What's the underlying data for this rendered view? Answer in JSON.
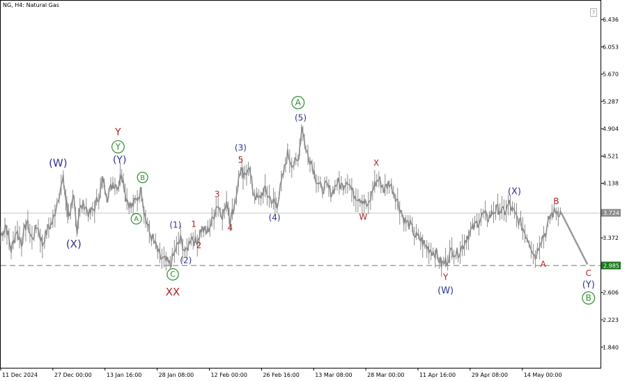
{
  "header": {
    "title": "NG, H4:  Natural Gas",
    "help_icon_symbol": "?"
  },
  "colors": {
    "price": "#8a8a8a",
    "navy": "#2e3192",
    "red": "#b22222",
    "green": "#2e8b2e",
    "marker_current": "#8c8c8c",
    "marker_level": "#1e7a1e"
  },
  "chart_data": {
    "type": "line",
    "title": "NG, H4:  Natural Gas",
    "instrument": "NG",
    "timeframe": "H4",
    "name": "Natural Gas",
    "xlabel": "",
    "ylabel": "",
    "grid": false,
    "ylim": [
      1.55,
      6.7
    ],
    "y_ticks": [
      6.436,
      6.053,
      5.67,
      5.287,
      4.904,
      4.521,
      4.138,
      3.755,
      3.372,
      2.989,
      2.606,
      2.223,
      1.84
    ],
    "y_tick_labels": [
      "6.436",
      "6.053",
      "5.670",
      "5.287",
      "4.904",
      "4.521",
      "4.138",
      "",
      "3.372",
      "",
      "2.606",
      "2.223",
      "1.840"
    ],
    "x_ticks": [
      {
        "label": "11 Dec 2024",
        "x": 0
      },
      {
        "label": "27 Dec 00:00",
        "x": 10
      },
      {
        "label": "13 Jan 16:00",
        "x": 20
      },
      {
        "label": "28 Jan 08:00",
        "x": 30
      },
      {
        "label": "12 Feb 00:00",
        "x": 40
      },
      {
        "label": "26 Feb 16:00",
        "x": 50
      },
      {
        "label": "13 Mar 08:00",
        "x": 60
      },
      {
        "label": "28 Mar 00:00",
        "x": 70
      },
      {
        "label": "11 Apr 16:00",
        "x": 80
      },
      {
        "label": "29 Apr 08:00",
        "x": 90
      },
      {
        "label": "14 May 00:00",
        "x": 100
      }
    ],
    "xlim": [
      0,
      115
    ],
    "price_path": [
      [
        0,
        3.4
      ],
      [
        1,
        3.55
      ],
      [
        2,
        3.2
      ],
      [
        3,
        3.48
      ],
      [
        4,
        3.3
      ],
      [
        5,
        3.6
      ],
      [
        6,
        3.35
      ],
      [
        7,
        3.55
      ],
      [
        8,
        3.28
      ],
      [
        9,
        3.5
      ],
      [
        10,
        3.6
      ],
      [
        11,
        3.95
      ],
      [
        12,
        4.18
      ],
      [
        12.6,
        3.85
      ],
      [
        13,
        3.7
      ],
      [
        14,
        3.9
      ],
      [
        14.6,
        3.45
      ],
      [
        15,
        3.75
      ],
      [
        16,
        3.85
      ],
      [
        17,
        3.7
      ],
      [
        18,
        3.8
      ],
      [
        19,
        4.0
      ],
      [
        19.6,
        4.2
      ],
      [
        20.5,
        3.95
      ],
      [
        21.5,
        4.15
      ],
      [
        22.5,
        4.1
      ],
      [
        23.2,
        4.3
      ],
      [
        24,
        3.95
      ],
      [
        25,
        3.8
      ],
      [
        26,
        3.9
      ],
      [
        27,
        4.05
      ],
      [
        27.6,
        3.7
      ],
      [
        28.5,
        3.45
      ],
      [
        29.5,
        3.3
      ],
      [
        30.5,
        3.1
      ],
      [
        31.5,
        3.05
      ],
      [
        32.5,
        2.99
      ],
      [
        33.5,
        3.2
      ],
      [
        34.5,
        3.35
      ],
      [
        35.5,
        3.15
      ],
      [
        36.5,
        3.4
      ],
      [
        37.5,
        3.3
      ],
      [
        38.5,
        3.5
      ],
      [
        39.5,
        3.45
      ],
      [
        40.5,
        3.6
      ],
      [
        41.5,
        3.85
      ],
      [
        42.5,
        3.7
      ],
      [
        43.5,
        3.85
      ],
      [
        44,
        3.6
      ],
      [
        45,
        3.9
      ],
      [
        46,
        4.35
      ],
      [
        46.6,
        4.2
      ],
      [
        47.5,
        4.4
      ],
      [
        48.5,
        4.0
      ],
      [
        49.5,
        3.9
      ],
      [
        50.5,
        4.05
      ],
      [
        51.5,
        3.95
      ],
      [
        52.5,
        3.85
      ],
      [
        53,
        3.85
      ],
      [
        54,
        4.2
      ],
      [
        55,
        4.55
      ],
      [
        56,
        4.4
      ],
      [
        57,
        4.45
      ],
      [
        57.8,
        4.95
      ],
      [
        58.5,
        4.6
      ],
      [
        59.5,
        4.45
      ],
      [
        60.5,
        4.2
      ],
      [
        61.5,
        4.05
      ],
      [
        62.5,
        4.1
      ],
      [
        63.5,
        4.0
      ],
      [
        64.5,
        4.15
      ],
      [
        65.5,
        4.1
      ],
      [
        66.5,
        4.2
      ],
      [
        67.5,
        4.0
      ],
      [
        68.5,
        3.95
      ],
      [
        69.5,
        3.9
      ],
      [
        70.5,
        3.8
      ],
      [
        71.5,
        4.1
      ],
      [
        72.5,
        4.2
      ],
      [
        73.5,
        4.05
      ],
      [
        74.5,
        4.15
      ],
      [
        75.5,
        4.0
      ],
      [
        76.5,
        3.8
      ],
      [
        77.5,
        3.6
      ],
      [
        78.5,
        3.55
      ],
      [
        79.5,
        3.4
      ],
      [
        80.5,
        3.35
      ],
      [
        81.5,
        3.25
      ],
      [
        82.5,
        3.2
      ],
      [
        83.5,
        3.15
      ],
      [
        84.5,
        3.0
      ],
      [
        85.5,
        3.05
      ],
      [
        86.5,
        3.2
      ],
      [
        87.5,
        3.15
      ],
      [
        88.5,
        3.25
      ],
      [
        89.5,
        3.4
      ],
      [
        90.5,
        3.5
      ],
      [
        91.5,
        3.6
      ],
      [
        92.5,
        3.7
      ],
      [
        93.5,
        3.65
      ],
      [
        94.5,
        3.75
      ],
      [
        95.5,
        3.78
      ],
      [
        96.5,
        3.72
      ],
      [
        97.5,
        3.85
      ],
      [
        98.5,
        3.7
      ],
      [
        99.5,
        3.6
      ],
      [
        100.5,
        3.45
      ],
      [
        101.5,
        3.3
      ],
      [
        102.5,
        3.1
      ],
      [
        103.5,
        3.35
      ],
      [
        104.5,
        3.45
      ],
      [
        105.5,
        3.7
      ],
      [
        106.5,
        3.75
      ],
      [
        107.5,
        3.72
      ]
    ],
    "projection": {
      "from": [
        107.5,
        3.72
      ],
      "to": [
        112.5,
        3.0
      ]
    },
    "reference_lines": [
      {
        "name": "current-price-line",
        "y": 3.72,
        "style": "solid"
      },
      {
        "name": "level-line",
        "y": 2.985,
        "style": "dashed"
      }
    ],
    "price_markers": [
      {
        "name": "current-price-marker",
        "label": "3.724",
        "y": 3.724
      },
      {
        "name": "level-marker",
        "label": "2.985",
        "y": 2.985
      }
    ],
    "wave_labels": [
      {
        "text": "(W)",
        "x": 11,
        "y": 4.42,
        "color": "navy",
        "size": 15
      },
      {
        "text": "(X)",
        "x": 14,
        "y": 3.28,
        "color": "navy",
        "size": 15
      },
      {
        "text": "Y",
        "x": 22.5,
        "y": 4.85,
        "color": "red",
        "size": 14
      },
      {
        "text": "Y",
        "x": 22.5,
        "y": 4.65,
        "color": "green",
        "size": 13,
        "circled": true
      },
      {
        "text": "(Y)",
        "x": 22.8,
        "y": 4.46,
        "color": "navy",
        "size": 14
      },
      {
        "text": "B",
        "x": 27.2,
        "y": 4.22,
        "color": "green",
        "size": 11,
        "circled": true
      },
      {
        "text": "A",
        "x": 26,
        "y": 3.64,
        "color": "green",
        "size": 11,
        "circled": true
      },
      {
        "text": "(1)",
        "x": 33.5,
        "y": 3.55,
        "color": "navy",
        "size": 12
      },
      {
        "text": "1",
        "x": 37,
        "y": 3.56,
        "color": "red",
        "size": 12
      },
      {
        "text": "2",
        "x": 38,
        "y": 3.26,
        "color": "red",
        "size": 12
      },
      {
        "text": "(2)",
        "x": 35.5,
        "y": 3.05,
        "color": "navy",
        "size": 12
      },
      {
        "text": "C",
        "x": 33,
        "y": 2.86,
        "color": "green",
        "size": 12,
        "circled": true
      },
      {
        "text": "XX",
        "x": 33,
        "y": 2.61,
        "color": "red",
        "size": 15
      },
      {
        "text": "3",
        "x": 41.5,
        "y": 3.98,
        "color": "red",
        "size": 12
      },
      {
        "text": "4",
        "x": 44,
        "y": 3.51,
        "color": "red",
        "size": 12
      },
      {
        "text": "(3)",
        "x": 46,
        "y": 4.63,
        "color": "navy",
        "size": 12
      },
      {
        "text": "5",
        "x": 46,
        "y": 4.46,
        "color": "red",
        "size": 12
      },
      {
        "text": "(4)",
        "x": 52.5,
        "y": 3.65,
        "color": "navy",
        "size": 12
      },
      {
        "text": "A",
        "x": 57,
        "y": 5.27,
        "color": "green",
        "size": 13,
        "circled": true
      },
      {
        "text": "(5)",
        "x": 57.5,
        "y": 5.05,
        "color": "navy",
        "size": 12
      },
      {
        "text": "X",
        "x": 72,
        "y": 4.42,
        "color": "red",
        "size": 12
      },
      {
        "text": "W",
        "x": 69.5,
        "y": 3.66,
        "color": "red",
        "size": 12
      },
      {
        "text": "Y",
        "x": 85.3,
        "y": 2.82,
        "color": "red",
        "size": 12
      },
      {
        "text": "(W)",
        "x": 85.3,
        "y": 2.63,
        "color": "navy",
        "size": 13
      },
      {
        "text": "(X)",
        "x": 98.5,
        "y": 4.02,
        "color": "navy",
        "size": 13
      },
      {
        "text": "B",
        "x": 106.5,
        "y": 3.88,
        "color": "red",
        "size": 12
      },
      {
        "text": "A",
        "x": 104,
        "y": 3.0,
        "color": "red",
        "size": 12
      },
      {
        "text": "C",
        "x": 112.7,
        "y": 2.87,
        "color": "red",
        "size": 12
      },
      {
        "text": "(Y)",
        "x": 112.7,
        "y": 2.71,
        "color": "navy",
        "size": 13
      },
      {
        "text": "B",
        "x": 112.7,
        "y": 2.53,
        "color": "green",
        "size": 13,
        "circled": true
      }
    ]
  }
}
